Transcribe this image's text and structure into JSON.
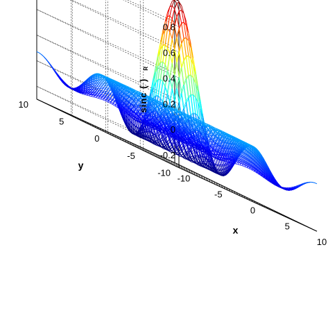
{
  "chart_data": {
    "type": "surface-mesh",
    "function": "sinc(R) = sin(R)/R, R = sqrt(x^2 + y^2)",
    "x": {
      "label": "x",
      "range": [
        -10,
        10
      ],
      "ticks": [
        -10,
        -5,
        0,
        5,
        10
      ],
      "tick_labels": [
        "-10",
        "-5",
        "0",
        "5",
        "10"
      ]
    },
    "y": {
      "label": "y",
      "range": [
        -10,
        10
      ],
      "ticks": [
        -10,
        -5,
        0,
        5,
        10
      ],
      "tick_labels": [
        "-10",
        "-5",
        "0",
        "5",
        "10"
      ]
    },
    "z": {
      "label_main": "sinc ( )",
      "label_sub": "R",
      "range": [
        -0.3,
        1.0
      ],
      "ticks": [
        -0.2,
        0,
        0.2,
        0.4,
        0.6,
        0.8
      ],
      "tick_labels": [
        "-0.2",
        "0",
        "0.2",
        "0.4",
        "0.6",
        "0.8"
      ]
    },
    "z_max": 1.0,
    "z_min": -0.217,
    "colormap": "jet",
    "grid": true,
    "box": "open-back"
  }
}
